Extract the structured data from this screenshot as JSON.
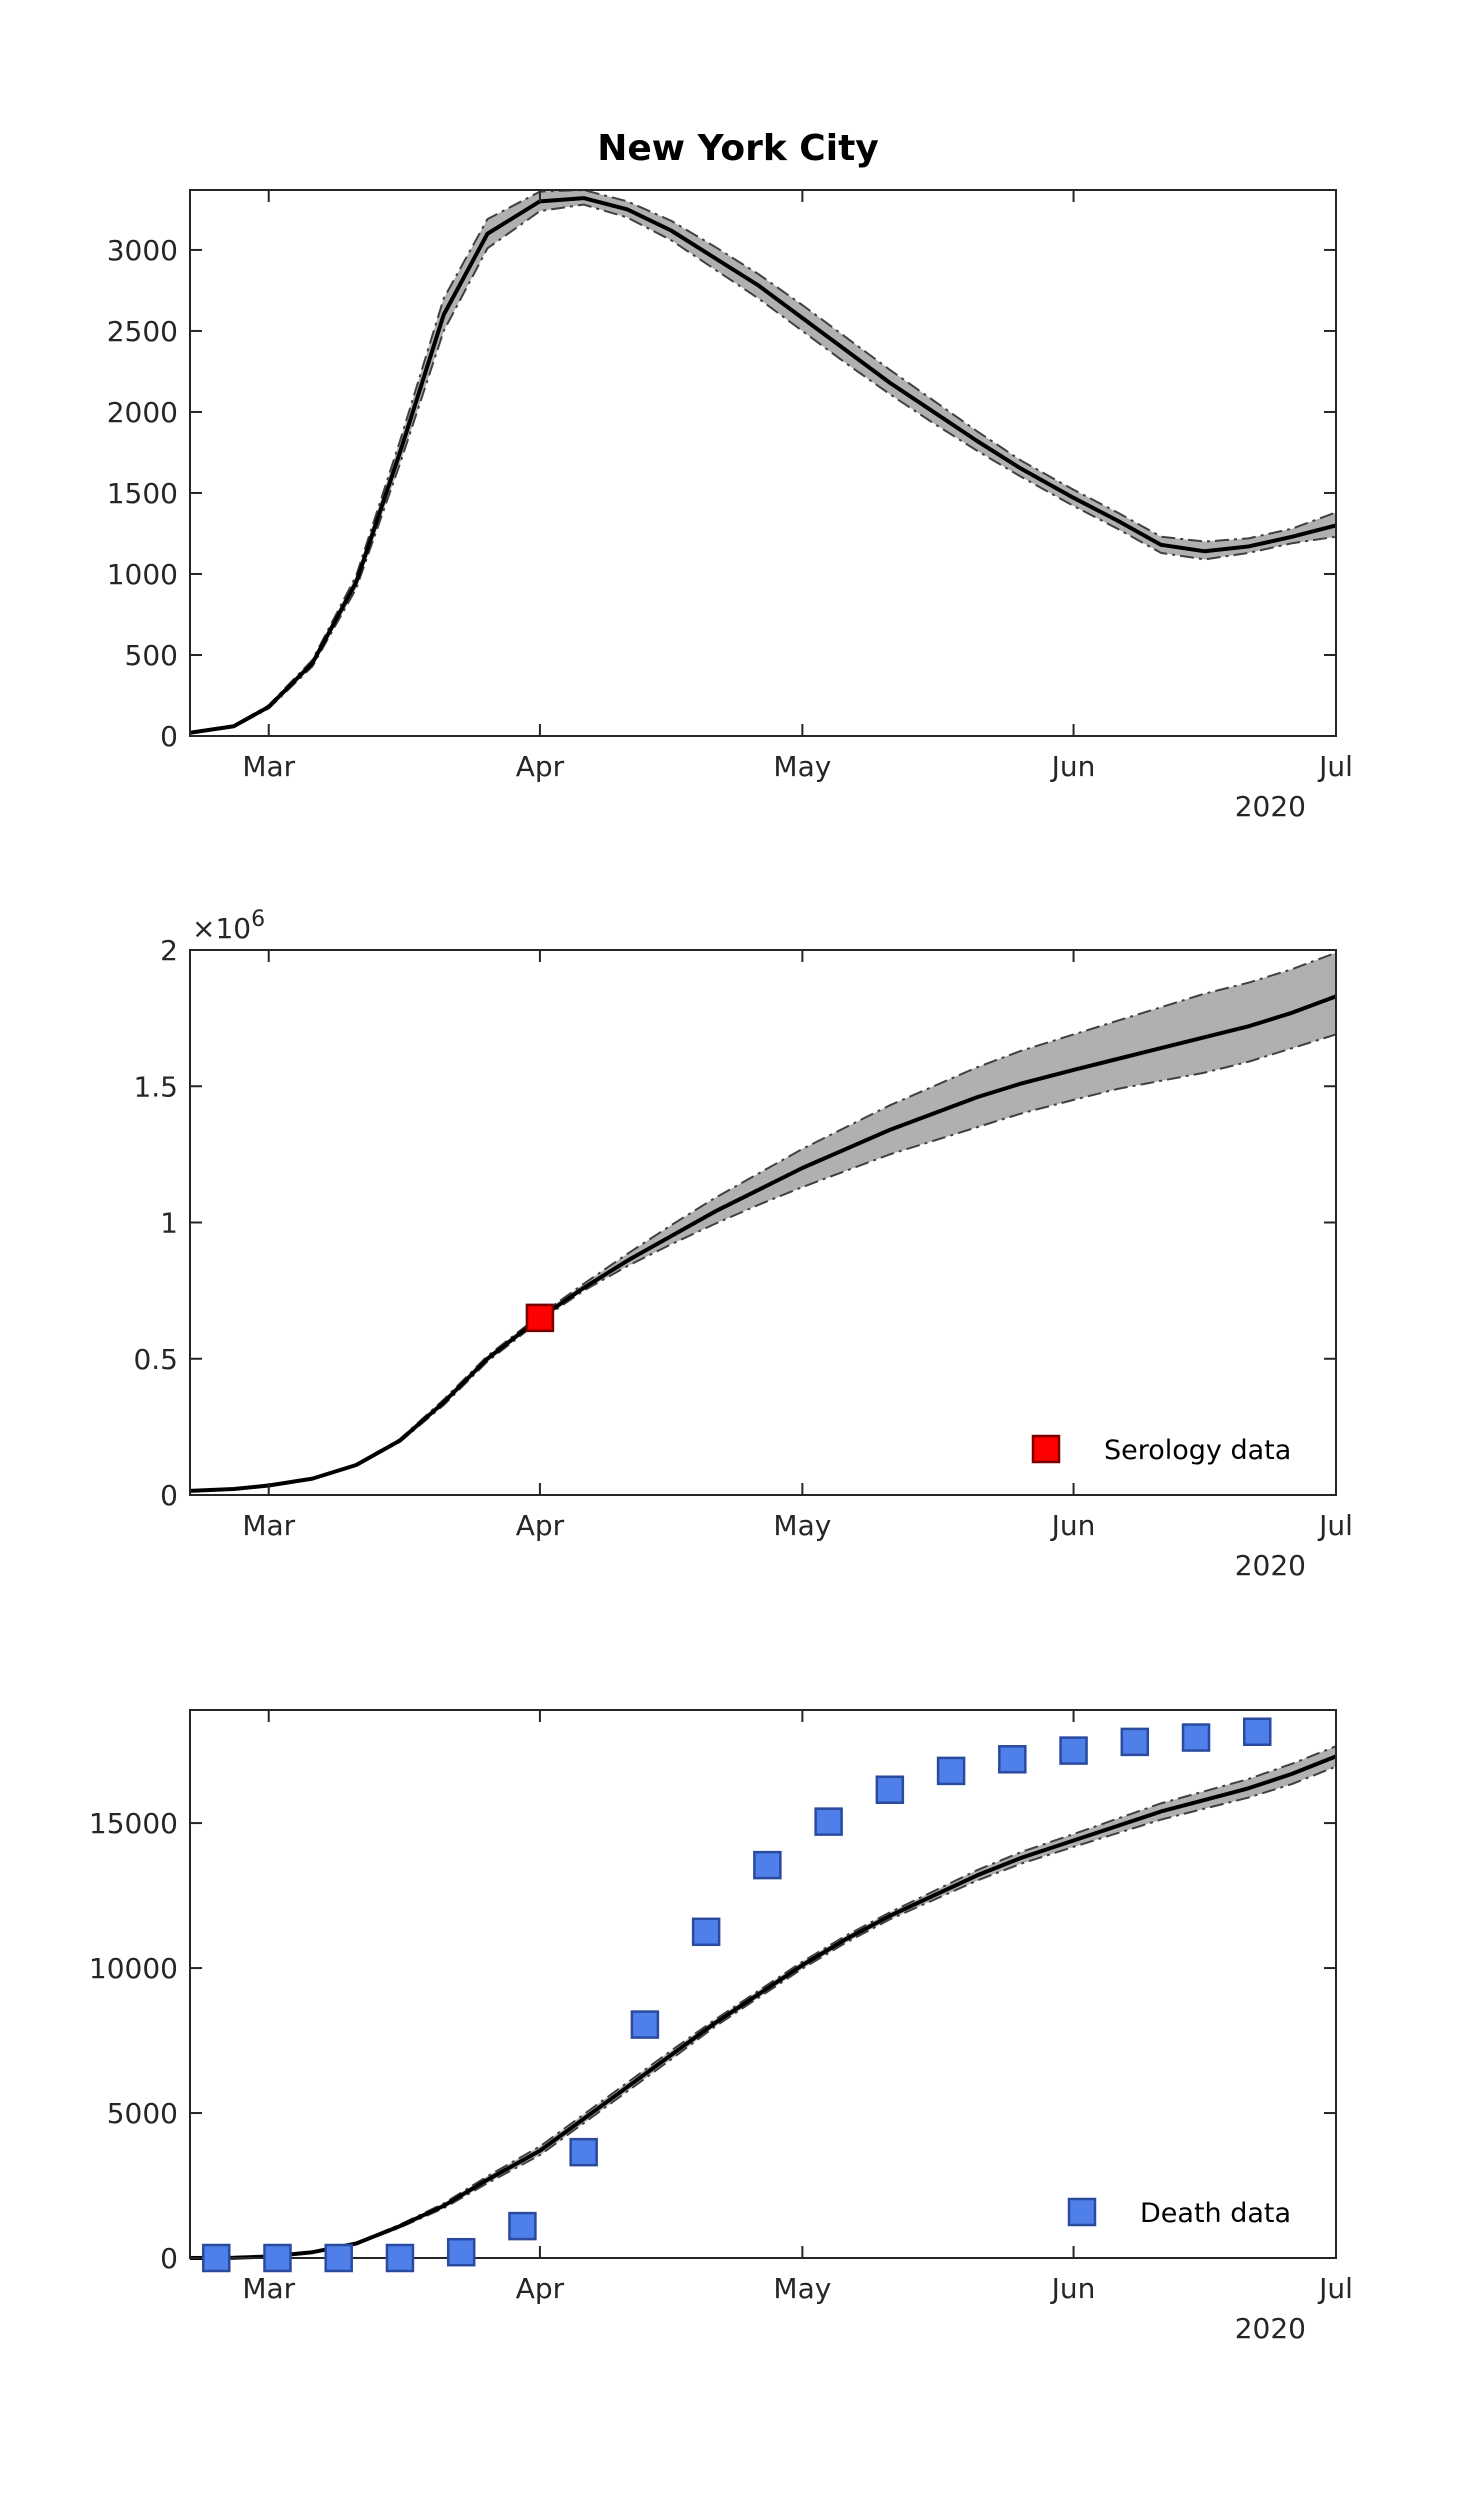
{
  "figure": {
    "title": "New York City",
    "year_label": "2020"
  },
  "colors": {
    "median_line": "#000000",
    "band_fill": "#b0b0b0",
    "band_edge": "#404040",
    "serology_marker": "#ff0000",
    "death_marker": "#4f7fe8",
    "death_marker_edge": "#2a4aa0",
    "axis": "#262626"
  },
  "chart_data": [
    {
      "type": "line",
      "title": "New York City",
      "xlabel": "",
      "ylabel": "",
      "x_axis": {
        "type": "date",
        "range": [
          "2020-02-21",
          "2020-07-01"
        ],
        "ticks": [
          "2020-03-01",
          "2020-04-01",
          "2020-05-01",
          "2020-06-01",
          "2020-07-01"
        ],
        "tick_labels": [
          "Mar",
          "Apr",
          "May",
          "Jun",
          "Jul"
        ],
        "year_label": "2020"
      },
      "ylim": [
        0,
        3370
      ],
      "yticks": [
        0,
        500,
        1000,
        1500,
        2000,
        2500,
        3000
      ],
      "ytick_labels": [
        "0",
        "500",
        "1000",
        "1500",
        "2000",
        "2500",
        "3000"
      ],
      "grid": false,
      "series": [
        {
          "role": "median",
          "x": [
            "2020-02-21",
            "2020-02-26",
            "2020-03-01",
            "2020-03-06",
            "2020-03-11",
            "2020-03-16",
            "2020-03-21",
            "2020-03-26",
            "2020-04-01",
            "2020-04-06",
            "2020-04-11",
            "2020-04-16",
            "2020-04-21",
            "2020-04-26",
            "2020-05-01",
            "2020-05-06",
            "2020-05-11",
            "2020-05-16",
            "2020-05-21",
            "2020-05-26",
            "2020-06-01",
            "2020-06-06",
            "2020-06-11",
            "2020-06-16",
            "2020-06-21",
            "2020-06-26",
            "2020-07-01"
          ],
          "y": [
            20,
            60,
            180,
            450,
            950,
            1750,
            2600,
            3100,
            3300,
            3320,
            3250,
            3120,
            2950,
            2780,
            2580,
            2380,
            2180,
            2000,
            1820,
            1650,
            1470,
            1330,
            1180,
            1140,
            1170,
            1230,
            1300
          ]
        },
        {
          "role": "upper_bound",
          "x": [
            "2020-02-21",
            "2020-02-26",
            "2020-03-01",
            "2020-03-06",
            "2020-03-11",
            "2020-03-16",
            "2020-03-21",
            "2020-03-26",
            "2020-04-01",
            "2020-04-06",
            "2020-04-11",
            "2020-04-16",
            "2020-04-21",
            "2020-04-26",
            "2020-05-01",
            "2020-05-06",
            "2020-05-11",
            "2020-05-16",
            "2020-05-21",
            "2020-05-26",
            "2020-06-01",
            "2020-06-06",
            "2020-06-11",
            "2020-06-16",
            "2020-06-21",
            "2020-06-26",
            "2020-07-01"
          ],
          "y": [
            22,
            65,
            190,
            470,
            990,
            1820,
            2700,
            3190,
            3360,
            3370,
            3300,
            3180,
            3020,
            2850,
            2660,
            2460,
            2260,
            2070,
            1880,
            1700,
            1520,
            1380,
            1230,
            1200,
            1220,
            1280,
            1380
          ]
        },
        {
          "role": "lower_bound",
          "x": [
            "2020-02-21",
            "2020-02-26",
            "2020-03-01",
            "2020-03-06",
            "2020-03-11",
            "2020-03-16",
            "2020-03-21",
            "2020-03-26",
            "2020-04-01",
            "2020-04-06",
            "2020-04-11",
            "2020-04-16",
            "2020-04-21",
            "2020-04-26",
            "2020-05-01",
            "2020-05-06",
            "2020-05-11",
            "2020-05-16",
            "2020-05-21",
            "2020-05-26",
            "2020-06-01",
            "2020-06-06",
            "2020-06-11",
            "2020-06-16",
            "2020-06-21",
            "2020-06-26",
            "2020-07-01"
          ],
          "y": [
            18,
            55,
            170,
            430,
            910,
            1680,
            2500,
            3010,
            3240,
            3280,
            3200,
            3060,
            2880,
            2700,
            2500,
            2300,
            2110,
            1930,
            1760,
            1600,
            1420,
            1280,
            1130,
            1090,
            1130,
            1190,
            1230
          ]
        }
      ]
    },
    {
      "type": "line",
      "xlabel": "",
      "ylabel": "",
      "x_axis": {
        "type": "date",
        "range": [
          "2020-02-21",
          "2020-07-01"
        ],
        "ticks": [
          "2020-03-01",
          "2020-04-01",
          "2020-05-01",
          "2020-06-01",
          "2020-07-01"
        ],
        "tick_labels": [
          "Mar",
          "Apr",
          "May",
          "Jun",
          "Jul"
        ],
        "year_label": "2020"
      },
      "ylim": [
        0,
        2000000
      ],
      "yticks": [
        0,
        500000,
        1000000,
        1500000,
        2000000
      ],
      "ytick_labels": [
        "0",
        "0.5",
        "1",
        "1.5",
        "2"
      ],
      "y_multiplier_label": "×10",
      "y_multiplier_exponent": "6",
      "grid": false,
      "legend": {
        "placement": "bottom-right",
        "entries": [
          "Serology data"
        ]
      },
      "series": [
        {
          "role": "median",
          "x": [
            "2020-02-21",
            "2020-02-26",
            "2020-03-01",
            "2020-03-06",
            "2020-03-11",
            "2020-03-16",
            "2020-03-21",
            "2020-03-26",
            "2020-04-01",
            "2020-04-06",
            "2020-04-11",
            "2020-04-16",
            "2020-04-21",
            "2020-04-26",
            "2020-05-01",
            "2020-05-06",
            "2020-05-11",
            "2020-05-16",
            "2020-05-21",
            "2020-05-26",
            "2020-06-01",
            "2020-06-06",
            "2020-06-11",
            "2020-06-16",
            "2020-06-21",
            "2020-06-26",
            "2020-07-01"
          ],
          "y": [
            15000,
            22000,
            35000,
            60000,
            110000,
            200000,
            340000,
            500000,
            650000,
            760000,
            860000,
            950000,
            1040000,
            1120000,
            1200000,
            1270000,
            1340000,
            1400000,
            1460000,
            1510000,
            1560000,
            1600000,
            1640000,
            1680000,
            1720000,
            1770000,
            1830000
          ]
        },
        {
          "role": "upper_bound",
          "x": [
            "2020-02-21",
            "2020-02-26",
            "2020-03-01",
            "2020-03-06",
            "2020-03-11",
            "2020-03-16",
            "2020-03-21",
            "2020-03-26",
            "2020-04-01",
            "2020-04-06",
            "2020-04-11",
            "2020-04-16",
            "2020-04-21",
            "2020-04-26",
            "2020-05-01",
            "2020-05-06",
            "2020-05-11",
            "2020-05-16",
            "2020-05-21",
            "2020-05-26",
            "2020-06-01",
            "2020-06-06",
            "2020-06-11",
            "2020-06-16",
            "2020-06-21",
            "2020-06-26",
            "2020-07-01"
          ],
          "y": [
            15000,
            22000,
            35000,
            60000,
            112000,
            205000,
            350000,
            510000,
            660000,
            775000,
            885000,
            990000,
            1090000,
            1180000,
            1270000,
            1350000,
            1430000,
            1500000,
            1570000,
            1630000,
            1690000,
            1740000,
            1790000,
            1840000,
            1880000,
            1930000,
            1990000
          ]
        },
        {
          "role": "lower_bound",
          "x": [
            "2020-02-21",
            "2020-02-26",
            "2020-03-01",
            "2020-03-06",
            "2020-03-11",
            "2020-03-16",
            "2020-03-21",
            "2020-03-26",
            "2020-04-01",
            "2020-04-06",
            "2020-04-11",
            "2020-04-16",
            "2020-04-21",
            "2020-04-26",
            "2020-05-01",
            "2020-05-06",
            "2020-05-11",
            "2020-05-16",
            "2020-05-21",
            "2020-05-26",
            "2020-06-01",
            "2020-06-06",
            "2020-06-11",
            "2020-06-16",
            "2020-06-21",
            "2020-06-26",
            "2020-07-01"
          ],
          "y": [
            15000,
            22000,
            35000,
            60000,
            108000,
            195000,
            330000,
            490000,
            640000,
            750000,
            840000,
            920000,
            995000,
            1065000,
            1130000,
            1190000,
            1250000,
            1300000,
            1350000,
            1400000,
            1450000,
            1490000,
            1520000,
            1550000,
            1590000,
            1640000,
            1690000
          ]
        },
        {
          "name": "Serology data",
          "role": "points",
          "marker": "square",
          "x": [
            "2020-04-01"
          ],
          "y": [
            650000
          ]
        }
      ]
    },
    {
      "type": "line",
      "xlabel": "",
      "ylabel": "",
      "x_axis": {
        "type": "date",
        "range": [
          "2020-02-21",
          "2020-07-01"
        ],
        "ticks": [
          "2020-03-01",
          "2020-04-01",
          "2020-05-01",
          "2020-06-01",
          "2020-07-01"
        ],
        "tick_labels": [
          "Mar",
          "Apr",
          "May",
          "Jun",
          "Jul"
        ],
        "year_label": "2020"
      },
      "ylim": [
        0,
        18900
      ],
      "yticks": [
        0,
        5000,
        10000,
        15000
      ],
      "ytick_labels": [
        "0",
        "5000",
        "10000",
        "15000"
      ],
      "grid": false,
      "legend": {
        "placement": "bottom-right",
        "entries": [
          "Death data"
        ]
      },
      "series": [
        {
          "role": "median",
          "x": [
            "2020-02-21",
            "2020-02-26",
            "2020-03-01",
            "2020-03-06",
            "2020-03-11",
            "2020-03-16",
            "2020-03-21",
            "2020-03-26",
            "2020-04-01",
            "2020-04-06",
            "2020-04-11",
            "2020-04-16",
            "2020-04-21",
            "2020-04-26",
            "2020-05-01",
            "2020-05-06",
            "2020-05-11",
            "2020-05-16",
            "2020-05-21",
            "2020-05-26",
            "2020-06-01",
            "2020-06-06",
            "2020-06-11",
            "2020-06-16",
            "2020-06-21",
            "2020-06-26",
            "2020-07-01"
          ],
          "y": [
            0,
            10,
            50,
            200,
            500,
            1100,
            1800,
            2700,
            3700,
            4800,
            5900,
            7000,
            8100,
            9100,
            10100,
            11000,
            11800,
            12500,
            13200,
            13800,
            14400,
            14900,
            15400,
            15800,
            16200,
            16700,
            17300
          ]
        },
        {
          "role": "upper_bound",
          "x": [
            "2020-02-21",
            "2020-02-26",
            "2020-03-01",
            "2020-03-06",
            "2020-03-11",
            "2020-03-16",
            "2020-03-21",
            "2020-03-26",
            "2020-04-01",
            "2020-04-06",
            "2020-04-11",
            "2020-04-16",
            "2020-04-21",
            "2020-04-26",
            "2020-05-01",
            "2020-05-06",
            "2020-05-11",
            "2020-05-16",
            "2020-05-21",
            "2020-05-26",
            "2020-06-01",
            "2020-06-06",
            "2020-06-11",
            "2020-06-16",
            "2020-06-21",
            "2020-06-26",
            "2020-07-01"
          ],
          "y": [
            0,
            10,
            55,
            210,
            520,
            1150,
            1880,
            2820,
            3850,
            4950,
            6050,
            7150,
            8220,
            9220,
            10220,
            11120,
            11920,
            12650,
            13380,
            14000,
            14620,
            15150,
            15680,
            16100,
            16520,
            17050,
            17650
          ]
        },
        {
          "role": "lower_bound",
          "x": [
            "2020-02-21",
            "2020-02-26",
            "2020-03-01",
            "2020-03-06",
            "2020-03-11",
            "2020-03-16",
            "2020-03-21",
            "2020-03-26",
            "2020-04-01",
            "2020-04-06",
            "2020-04-11",
            "2020-04-16",
            "2020-04-21",
            "2020-04-26",
            "2020-05-01",
            "2020-05-06",
            "2020-05-11",
            "2020-05-16",
            "2020-05-21",
            "2020-05-26",
            "2020-06-01",
            "2020-06-06",
            "2020-06-11",
            "2020-06-16",
            "2020-06-21",
            "2020-06-26",
            "2020-07-01"
          ],
          "y": [
            0,
            10,
            45,
            190,
            480,
            1050,
            1720,
            2580,
            3550,
            4650,
            5750,
            6850,
            7980,
            8980,
            9980,
            10880,
            11680,
            12350,
            13020,
            13600,
            14180,
            14650,
            15120,
            15500,
            15880,
            16350,
            16950
          ]
        },
        {
          "name": "Death data",
          "role": "points",
          "marker": "square",
          "x": [
            "2020-02-24",
            "2020-03-02",
            "2020-03-09",
            "2020-03-16",
            "2020-03-23",
            "2020-03-30",
            "2020-04-06",
            "2020-04-13",
            "2020-04-20",
            "2020-04-27",
            "2020-05-04",
            "2020-05-11",
            "2020-05-18",
            "2020-05-25",
            "2020-06-01",
            "2020-06-08",
            "2020-06-15",
            "2020-06-22"
          ],
          "y": [
            0,
            0,
            0,
            0,
            200,
            1100,
            3650,
            8050,
            11250,
            13550,
            15050,
            16150,
            16800,
            17200,
            17500,
            17800,
            17950,
            18150
          ]
        }
      ]
    }
  ]
}
